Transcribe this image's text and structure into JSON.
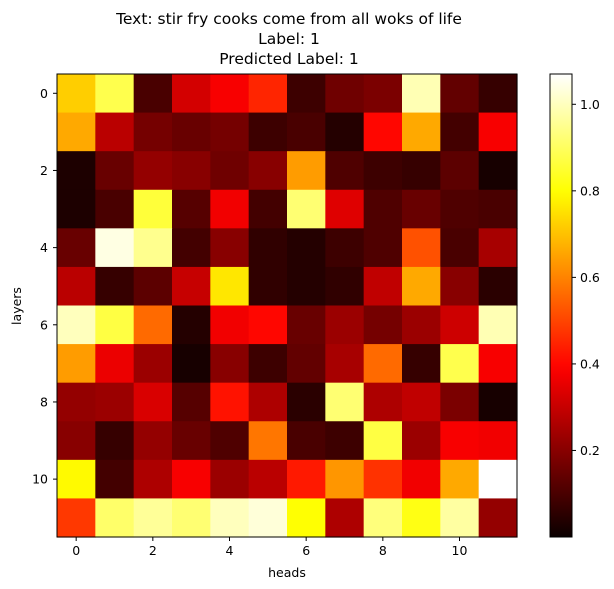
{
  "chart_data": {
    "type": "heatmap",
    "title_lines": [
      "Text: stir fry cooks come from all woks of life",
      "Label: 1",
      "Predicted Label: 1"
    ],
    "xlabel": "heads",
    "ylabel": "layers",
    "x_ticks": [
      0,
      2,
      4,
      6,
      8,
      10
    ],
    "y_ticks": [
      0,
      2,
      4,
      6,
      8,
      10
    ],
    "n_rows": 12,
    "n_cols": 12,
    "colormap": "hot",
    "color_range": [
      0.0,
      1.07
    ],
    "colorbar_ticks": [
      0.2,
      0.4,
      0.6,
      0.8,
      1.0
    ],
    "colorbar_tick_labels": [
      "0.2",
      "0.4",
      "0.6",
      "0.8",
      "1.0"
    ],
    "values": [
      [
        0.72,
        0.88,
        0.1,
        0.32,
        0.38,
        0.45,
        0.08,
        0.16,
        0.18,
        0.99,
        0.14,
        0.07
      ],
      [
        0.66,
        0.28,
        0.17,
        0.15,
        0.17,
        0.08,
        0.1,
        0.04,
        0.4,
        0.66,
        0.09,
        0.38
      ],
      [
        0.03,
        0.15,
        0.22,
        0.2,
        0.16,
        0.2,
        0.64,
        0.11,
        0.08,
        0.07,
        0.13,
        0.02
      ],
      [
        0.03,
        0.1,
        0.86,
        0.12,
        0.37,
        0.09,
        0.92,
        0.34,
        0.11,
        0.15,
        0.11,
        0.1
      ],
      [
        0.15,
        1.04,
        0.95,
        0.09,
        0.2,
        0.06,
        0.04,
        0.08,
        0.11,
        0.52,
        0.1,
        0.25
      ],
      [
        0.28,
        0.07,
        0.13,
        0.3,
        0.76,
        0.06,
        0.04,
        0.06,
        0.29,
        0.66,
        0.2,
        0.05
      ],
      [
        1.0,
        0.87,
        0.56,
        0.04,
        0.37,
        0.4,
        0.15,
        0.23,
        0.17,
        0.23,
        0.31,
        0.99
      ],
      [
        0.64,
        0.36,
        0.23,
        0.02,
        0.2,
        0.08,
        0.14,
        0.25,
        0.56,
        0.07,
        0.88,
        0.38
      ],
      [
        0.22,
        0.23,
        0.33,
        0.12,
        0.42,
        0.26,
        0.05,
        0.92,
        0.26,
        0.29,
        0.18,
        0.02
      ],
      [
        0.2,
        0.07,
        0.22,
        0.15,
        0.11,
        0.58,
        0.1,
        0.08,
        0.87,
        0.23,
        0.38,
        0.37
      ],
      [
        0.79,
        0.09,
        0.26,
        0.38,
        0.23,
        0.28,
        0.43,
        0.63,
        0.47,
        0.37,
        0.66,
        1.07
      ],
      [
        0.48,
        0.91,
        0.96,
        0.92,
        1.0,
        1.03,
        0.8,
        0.26,
        0.93,
        0.82,
        0.97,
        0.22
      ]
    ]
  }
}
